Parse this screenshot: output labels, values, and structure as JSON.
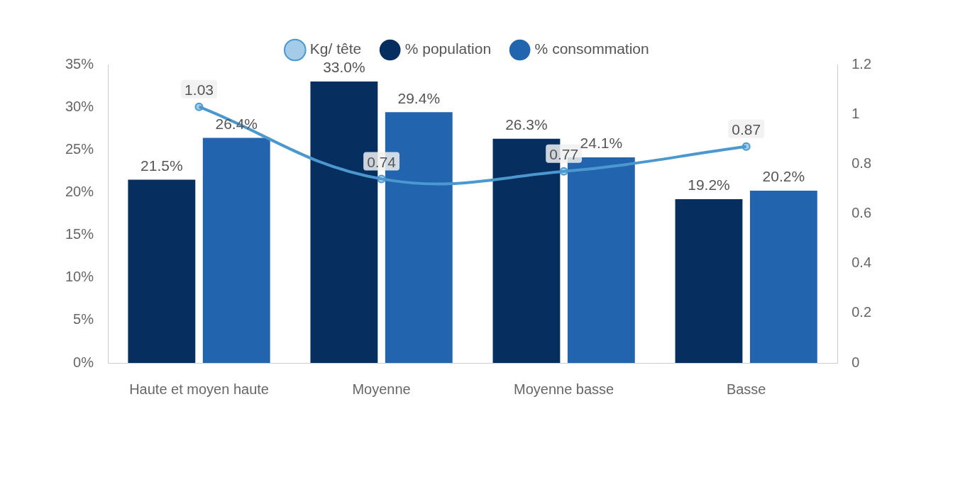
{
  "chart_data": {
    "type": "bar",
    "categories": [
      "Haute et moyen haute",
      "Moyenne",
      "Moyenne basse",
      "Basse"
    ],
    "series": [
      {
        "name": "Kg/ tête",
        "type": "line",
        "axis": "y2",
        "color": "#4a98cf",
        "marker": "circle",
        "values": [
          1.03,
          0.74,
          0.77,
          0.87
        ]
      },
      {
        "name": "% population",
        "color": "#062f5f",
        "values": [
          21.5,
          33.0,
          26.3,
          19.2
        ],
        "value_labels": [
          "21.5%",
          "33.0%",
          "26.3%",
          "19.2%"
        ]
      },
      {
        "name": "% consommation",
        "color": "#2265ae",
        "values": [
          26.4,
          29.4,
          24.1,
          20.2
        ],
        "value_labels": [
          "26.4%",
          "29.4%",
          "24.1%",
          "20.2%"
        ]
      }
    ],
    "ylim": [
      0,
      35
    ],
    "yticks": [
      {
        "value": 0,
        "label": "0%"
      },
      {
        "value": 5,
        "label": "5%"
      },
      {
        "value": 10,
        "label": "10%"
      },
      {
        "value": 15,
        "label": "15%"
      },
      {
        "value": 20,
        "label": "20%"
      },
      {
        "value": 25,
        "label": "25%"
      },
      {
        "value": 30,
        "label": "30%"
      },
      {
        "value": 35,
        "label": "35%"
      }
    ],
    "y2lim": [
      0,
      1.2
    ],
    "y2ticks": [
      0,
      0.2,
      0.4,
      0.6,
      0.8,
      1,
      1.2
    ],
    "grid": false,
    "legend": "top",
    "data_labels": true
  }
}
